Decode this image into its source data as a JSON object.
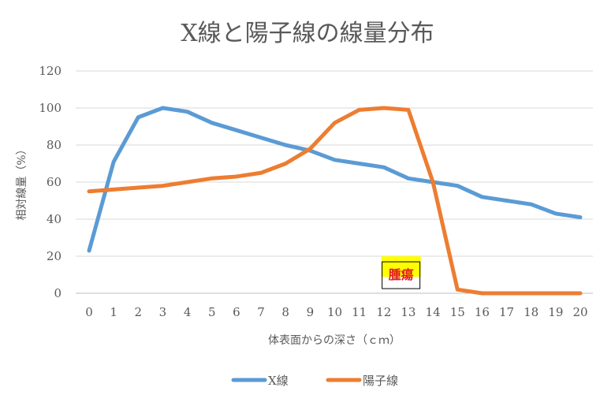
{
  "chart_data": {
    "type": "line",
    "title": "X線と陽子線の線量分布",
    "xlabel": "体表面からの深さ（ｃｍ）",
    "ylabel": "相対線量（%）",
    "x": [
      0,
      1,
      2,
      3,
      4,
      5,
      6,
      7,
      8,
      9,
      10,
      11,
      12,
      13,
      14,
      15,
      16,
      17,
      18,
      19,
      20
    ],
    "ylim": [
      0,
      120
    ],
    "yticks": [
      0,
      20,
      40,
      60,
      80,
      100,
      120
    ],
    "grid": true,
    "legend_position": "bottom",
    "series": [
      {
        "name": "X線",
        "color": "#5b9bd5",
        "values": [
          23,
          71,
          95,
          100,
          98,
          92,
          88,
          84,
          80,
          77,
          72,
          70,
          68,
          62,
          60,
          58,
          52,
          50,
          48,
          43,
          41
        ]
      },
      {
        "name": "陽子線",
        "color": "#ed7d31",
        "values": [
          55,
          56,
          57,
          58,
          60,
          62,
          63,
          65,
          70,
          78,
          92,
          99,
          100,
          99,
          60,
          2,
          0,
          0,
          0,
          0,
          0
        ]
      }
    ],
    "annotations": [
      {
        "text": "腫瘍",
        "x": 12.7,
        "y": 14,
        "background": "#ffff00",
        "text_color": "#e31a1c"
      }
    ]
  }
}
